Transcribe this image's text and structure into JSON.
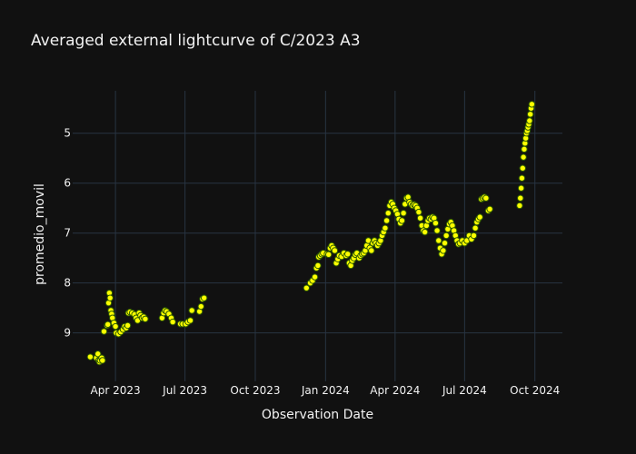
{
  "chart_data": {
    "type": "scatter",
    "title": "Averaged external lightcurve of C/2023 A3",
    "xlabel": "Observation Date",
    "ylabel": "promedio_movil",
    "y_reversed": true,
    "ylim": [
      9.97,
      4.15
    ],
    "xlim": [
      "2023-02-04",
      "2024-11-06"
    ],
    "x_ticks": [
      {
        "date": "2023-04-01",
        "label": "Apr 2023"
      },
      {
        "date": "2023-07-01",
        "label": "Jul 2023"
      },
      {
        "date": "2023-10-01",
        "label": "Oct 2023"
      },
      {
        "date": "2024-01-01",
        "label": "Jan 2024"
      },
      {
        "date": "2024-04-01",
        "label": "Apr 2024"
      },
      {
        "date": "2024-07-01",
        "label": "Jul 2024"
      },
      {
        "date": "2024-10-01",
        "label": "Oct 2024"
      }
    ],
    "y_ticks": [
      5,
      6,
      7,
      8,
      9
    ],
    "grid": true,
    "legend": "none",
    "marker_color": "#ffff00",
    "marker_edge_color": "#2e5a00",
    "background": "#111111",
    "points": [
      [
        "2023-02-27",
        9.48
      ],
      [
        "2023-03-07",
        9.5
      ],
      [
        "2023-03-09",
        9.42
      ],
      [
        "2023-03-10",
        9.55
      ],
      [
        "2023-03-11",
        9.58
      ],
      [
        "2023-03-12",
        9.55
      ],
      [
        "2023-03-14",
        9.5
      ],
      [
        "2023-03-15",
        9.55
      ],
      [
        "2023-03-17",
        8.97
      ],
      [
        "2023-03-21",
        8.85
      ],
      [
        "2023-03-22",
        8.83
      ],
      [
        "2023-03-23",
        8.4
      ],
      [
        "2023-03-24",
        8.2
      ],
      [
        "2023-03-25",
        8.3
      ],
      [
        "2023-03-26",
        8.55
      ],
      [
        "2023-03-27",
        8.62
      ],
      [
        "2023-03-28",
        8.7
      ],
      [
        "2023-03-30",
        8.8
      ],
      [
        "2023-04-01",
        8.87
      ],
      [
        "2023-04-02",
        9.0
      ],
      [
        "2023-04-05",
        9.02
      ],
      [
        "2023-04-08",
        8.98
      ],
      [
        "2023-04-11",
        8.93
      ],
      [
        "2023-04-13",
        8.87
      ],
      [
        "2023-04-15",
        8.9
      ],
      [
        "2023-04-17",
        8.85
      ],
      [
        "2023-04-18",
        8.6
      ],
      [
        "2023-04-20",
        8.58
      ],
      [
        "2023-04-23",
        8.6
      ],
      [
        "2023-04-26",
        8.63
      ],
      [
        "2023-04-28",
        8.7
      ],
      [
        "2023-04-30",
        8.75
      ],
      [
        "2023-05-02",
        8.6
      ],
      [
        "2023-05-04",
        8.65
      ],
      [
        "2023-05-06",
        8.7
      ],
      [
        "2023-05-08",
        8.68
      ],
      [
        "2023-05-10",
        8.72
      ],
      [
        "2023-06-01",
        8.7
      ],
      [
        "2023-06-03",
        8.6
      ],
      [
        "2023-06-05",
        8.55
      ],
      [
        "2023-06-07",
        8.57
      ],
      [
        "2023-06-10",
        8.62
      ],
      [
        "2023-06-13",
        8.7
      ],
      [
        "2023-06-15",
        8.78
      ],
      [
        "2023-06-25",
        8.82
      ],
      [
        "2023-06-28",
        8.82
      ],
      [
        "2023-07-02",
        8.82
      ],
      [
        "2023-07-05",
        8.78
      ],
      [
        "2023-07-08",
        8.75
      ],
      [
        "2023-07-10",
        8.55
      ],
      [
        "2023-07-20",
        8.57
      ],
      [
        "2023-07-22",
        8.47
      ],
      [
        "2023-07-24",
        8.32
      ],
      [
        "2023-07-26",
        8.3
      ],
      [
        "2023-12-07",
        8.1
      ],
      [
        "2023-12-12",
        8.0
      ],
      [
        "2023-12-15",
        7.95
      ],
      [
        "2023-12-18",
        7.88
      ],
      [
        "2023-12-20",
        7.7
      ],
      [
        "2023-12-22",
        7.65
      ],
      [
        "2023-12-23",
        7.48
      ],
      [
        "2023-12-25",
        7.45
      ],
      [
        "2023-12-27",
        7.42
      ],
      [
        "2023-12-29",
        7.4
      ],
      [
        "2024-01-03",
        7.42
      ],
      [
        "2024-01-05",
        7.43
      ],
      [
        "2024-01-07",
        7.3
      ],
      [
        "2024-01-09",
        7.25
      ],
      [
        "2024-01-11",
        7.3
      ],
      [
        "2024-01-13",
        7.35
      ],
      [
        "2024-01-15",
        7.6
      ],
      [
        "2024-01-17",
        7.52
      ],
      [
        "2024-01-19",
        7.45
      ],
      [
        "2024-01-22",
        7.47
      ],
      [
        "2024-01-25",
        7.4
      ],
      [
        "2024-01-28",
        7.45
      ],
      [
        "2024-01-30",
        7.42
      ],
      [
        "2024-02-01",
        7.6
      ],
      [
        "2024-02-03",
        7.65
      ],
      [
        "2024-02-05",
        7.55
      ],
      [
        "2024-02-07",
        7.5
      ],
      [
        "2024-02-09",
        7.43
      ],
      [
        "2024-02-11",
        7.4
      ],
      [
        "2024-02-14",
        7.5
      ],
      [
        "2024-02-16",
        7.45
      ],
      [
        "2024-02-18",
        7.42
      ],
      [
        "2024-02-20",
        7.4
      ],
      [
        "2024-02-22",
        7.35
      ],
      [
        "2024-02-24",
        7.25
      ],
      [
        "2024-02-26",
        7.15
      ],
      [
        "2024-02-28",
        7.3
      ],
      [
        "2024-03-01",
        7.35
      ],
      [
        "2024-03-03",
        7.2
      ],
      [
        "2024-03-05",
        7.15
      ],
      [
        "2024-03-07",
        7.2
      ],
      [
        "2024-03-09",
        7.25
      ],
      [
        "2024-03-11",
        7.2
      ],
      [
        "2024-03-13",
        7.15
      ],
      [
        "2024-03-15",
        7.05
      ],
      [
        "2024-03-17",
        6.98
      ],
      [
        "2024-03-19",
        6.9
      ],
      [
        "2024-03-21",
        6.75
      ],
      [
        "2024-03-23",
        6.6
      ],
      [
        "2024-03-25",
        6.45
      ],
      [
        "2024-03-27",
        6.38
      ],
      [
        "2024-03-29",
        6.42
      ],
      [
        "2024-03-31",
        6.5
      ],
      [
        "2024-04-02",
        6.55
      ],
      [
        "2024-04-04",
        6.62
      ],
      [
        "2024-04-06",
        6.72
      ],
      [
        "2024-04-08",
        6.8
      ],
      [
        "2024-04-10",
        6.75
      ],
      [
        "2024-04-12",
        6.6
      ],
      [
        "2024-04-14",
        6.42
      ],
      [
        "2024-04-16",
        6.3
      ],
      [
        "2024-04-18",
        6.28
      ],
      [
        "2024-04-20",
        6.38
      ],
      [
        "2024-04-22",
        6.42
      ],
      [
        "2024-04-24",
        6.45
      ],
      [
        "2024-04-26",
        6.43
      ],
      [
        "2024-04-28",
        6.45
      ],
      [
        "2024-04-30",
        6.5
      ],
      [
        "2024-05-02",
        6.58
      ],
      [
        "2024-05-04",
        6.7
      ],
      [
        "2024-05-06",
        6.85
      ],
      [
        "2024-05-08",
        6.95
      ],
      [
        "2024-05-10",
        6.98
      ],
      [
        "2024-05-12",
        6.85
      ],
      [
        "2024-05-14",
        6.75
      ],
      [
        "2024-05-16",
        6.7
      ],
      [
        "2024-05-18",
        6.72
      ],
      [
        "2024-05-20",
        6.68
      ],
      [
        "2024-05-22",
        6.7
      ],
      [
        "2024-05-24",
        6.8
      ],
      [
        "2024-05-26",
        6.95
      ],
      [
        "2024-05-28",
        7.15
      ],
      [
        "2024-05-30",
        7.3
      ],
      [
        "2024-06-01",
        7.42
      ],
      [
        "2024-06-03",
        7.35
      ],
      [
        "2024-06-05",
        7.2
      ],
      [
        "2024-06-07",
        7.05
      ],
      [
        "2024-06-09",
        6.92
      ],
      [
        "2024-06-11",
        6.82
      ],
      [
        "2024-06-13",
        6.78
      ],
      [
        "2024-06-15",
        6.85
      ],
      [
        "2024-06-17",
        6.95
      ],
      [
        "2024-06-19",
        7.05
      ],
      [
        "2024-06-21",
        7.15
      ],
      [
        "2024-06-23",
        7.22
      ],
      [
        "2024-06-25",
        7.2
      ],
      [
        "2024-06-28",
        7.15
      ],
      [
        "2024-07-01",
        7.2
      ],
      [
        "2024-07-04",
        7.15
      ],
      [
        "2024-07-07",
        7.05
      ],
      [
        "2024-07-10",
        7.12
      ],
      [
        "2024-07-13",
        7.05
      ],
      [
        "2024-07-15",
        6.9
      ],
      [
        "2024-07-17",
        6.78
      ],
      [
        "2024-07-19",
        6.72
      ],
      [
        "2024-07-21",
        6.68
      ],
      [
        "2024-07-23",
        6.32
      ],
      [
        "2024-07-25",
        6.3
      ],
      [
        "2024-07-27",
        6.28
      ],
      [
        "2024-07-29",
        6.3
      ],
      [
        "2024-08-01",
        6.55
      ],
      [
        "2024-08-03",
        6.52
      ],
      [
        "2024-09-11",
        6.45
      ],
      [
        "2024-09-12",
        6.3
      ],
      [
        "2024-09-13",
        6.1
      ],
      [
        "2024-09-14",
        5.9
      ],
      [
        "2024-09-15",
        5.7
      ],
      [
        "2024-09-16",
        5.48
      ],
      [
        "2024-09-17",
        5.32
      ],
      [
        "2024-09-18",
        5.2
      ],
      [
        "2024-09-19",
        5.1
      ],
      [
        "2024-09-20",
        5.0
      ],
      [
        "2024-09-21",
        4.95
      ],
      [
        "2024-09-22",
        4.88
      ],
      [
        "2024-09-23",
        4.82
      ],
      [
        "2024-09-24",
        4.75
      ],
      [
        "2024-09-25",
        4.62
      ],
      [
        "2024-09-26",
        4.5
      ],
      [
        "2024-09-27",
        4.42
      ]
    ]
  }
}
